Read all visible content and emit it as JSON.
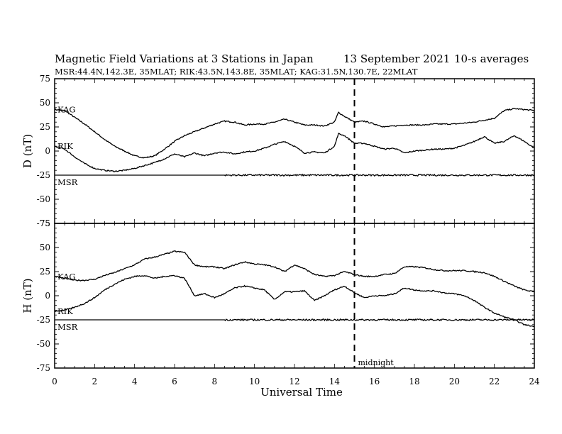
{
  "chart_data": {
    "type": "line",
    "title": "Magnetic Field Variations at 3 Stations in Japan",
    "date": "13 September 2021",
    "averaging": "10-s averages",
    "subtitle": "MSR:44.4N,142.3E, 35MLAT;  RIK:43.5N,143.8E, 35MLAT;  KAG:31.5N,130.7E, 22MLAT",
    "xlabel": "Universal Time",
    "xlim": [
      0,
      24
    ],
    "xticks": [
      "0",
      "2",
      "4",
      "6",
      "8",
      "10",
      "12",
      "14",
      "16",
      "18",
      "20",
      "22",
      "24"
    ],
    "annotation": {
      "x": 15,
      "label": "midnight"
    },
    "panels": [
      {
        "ylabel": "D (nT)",
        "ylim": [
          -75,
          75
        ],
        "yticks": [
          "75",
          "50",
          "25",
          "0",
          "-25",
          "-50",
          "-75"
        ],
        "series": [
          {
            "name": "KAG",
            "x": [
              0,
              0.5,
              1,
              1.5,
              2,
              2.5,
              3,
              3.5,
              4,
              4.5,
              5,
              5.5,
              6,
              6.5,
              7,
              7.5,
              8,
              8.5,
              9,
              9.5,
              10,
              10.5,
              11,
              11.5,
              12,
              12.5,
              13,
              13.5,
              14,
              14.2,
              14.5,
              15,
              15.5,
              16,
              16.5,
              17,
              17.5,
              18,
              18.5,
              19,
              19.5,
              20,
              20.5,
              21,
              21.5,
              22,
              22.5,
              23,
              23.5,
              24
            ],
            "y": [
              43,
              42,
              35,
              28,
              20,
              12,
              5,
              0,
              -5,
              -7,
              -5,
              2,
              10,
              16,
              20,
              24,
              28,
              31,
              30,
              27,
              28,
              28,
              30,
              33,
              30,
              27,
              27,
              26,
              30,
              40,
              36,
              30,
              31,
              28,
              25,
              26,
              27,
              27,
              27,
              28,
              28,
              28,
              29,
              30,
              32,
              34,
              42,
              44,
              43,
              42
            ]
          },
          {
            "name": "RIK",
            "x": [
              0,
              0.5,
              1,
              1.5,
              2,
              2.5,
              3,
              3.5,
              4,
              4.5,
              5,
              5.5,
              6,
              6.5,
              7,
              7.5,
              8,
              8.5,
              9,
              9.5,
              10,
              10.5,
              11,
              11.5,
              12,
              12.5,
              13,
              13.5,
              14,
              14.2,
              14.5,
              15,
              15.5,
              16,
              16.5,
              17,
              17.5,
              18,
              18.5,
              19,
              19.5,
              20,
              20.5,
              21,
              21.5,
              22,
              22.5,
              23,
              23.5,
              24
            ],
            "y": [
              5,
              2,
              -6,
              -13,
              -18,
              -20,
              -21,
              -20,
              -18,
              -15,
              -12,
              -8,
              -3,
              -6,
              -2,
              -5,
              -2,
              -1,
              -3,
              -1,
              0,
              3,
              7,
              10,
              5,
              -2,
              -1,
              -2,
              5,
              18,
              16,
              8,
              8,
              5,
              2,
              3,
              -2,
              0,
              1,
              2,
              2,
              3,
              6,
              10,
              15,
              8,
              10,
              16,
              10,
              3
            ]
          },
          {
            "name": "MSR",
            "x": [
              0,
              2,
              4,
              6,
              8,
              10,
              12,
              14,
              15,
              16,
              18,
              20,
              22,
              24
            ],
            "y": [
              -25,
              -25,
              -25,
              -25,
              -25,
              -25,
              -25,
              -25,
              -25,
              -25,
              -25,
              -25,
              -25,
              -25
            ]
          }
        ]
      },
      {
        "ylabel": "H (nT)",
        "ylim": [
          -75,
          75
        ],
        "yticks": [
          "75",
          "50",
          "25",
          "0",
          "-25",
          "-50",
          "-75"
        ],
        "series": [
          {
            "name": "KAG",
            "x": [
              0,
              0.5,
              1,
              1.5,
              2,
              2.5,
              3,
              3.5,
              4,
              4.5,
              5,
              5.5,
              6,
              6.5,
              7,
              7.5,
              8,
              8.5,
              9,
              9.5,
              10,
              10.5,
              11,
              11.5,
              12,
              12.5,
              13,
              13.5,
              14,
              14.5,
              15,
              15.5,
              16,
              16.5,
              17,
              17.5,
              18,
              18.5,
              19,
              19.5,
              20,
              20.5,
              21,
              21.5,
              22,
              22.5,
              23,
              23.5,
              24
            ],
            "y": [
              20,
              18,
              16,
              16,
              17,
              21,
              24,
              28,
              32,
              38,
              40,
              43,
              46,
              45,
              32,
              30,
              30,
              28,
              32,
              35,
              33,
              32,
              30,
              25,
              32,
              28,
              22,
              20,
              21,
              25,
              22,
              20,
              20,
              22,
              23,
              30,
              30,
              29,
              27,
              26,
              26,
              26,
              25,
              24,
              20,
              15,
              10,
              6,
              4
            ]
          },
          {
            "name": "RIK",
            "x": [
              0,
              0.5,
              1,
              1.5,
              2,
              2.5,
              3,
              3.5,
              4,
              4.5,
              5,
              5.5,
              6,
              6.5,
              7,
              7.5,
              8,
              8.5,
              9,
              9.5,
              10,
              10.5,
              11,
              11.5,
              12,
              12.5,
              13,
              13.5,
              14,
              14.5,
              15,
              15.5,
              16,
              16.5,
              17,
              17.5,
              18,
              18.5,
              19,
              19.5,
              20,
              20.5,
              21,
              21.5,
              22,
              22.5,
              23,
              23.5,
              24
            ],
            "y": [
              -16,
              -15,
              -12,
              -8,
              -2,
              6,
              12,
              17,
              20,
              21,
              18,
              20,
              21,
              18,
              0,
              2,
              -2,
              2,
              8,
              10,
              8,
              6,
              -4,
              4,
              4,
              5,
              -5,
              0,
              6,
              10,
              3,
              -2,
              0,
              0,
              2,
              8,
              6,
              5,
              5,
              3,
              2,
              0,
              -5,
              -12,
              -18,
              -22,
              -25,
              -30,
              -32
            ]
          },
          {
            "name": "MSR",
            "x": [
              0,
              2,
              4,
              6,
              8,
              10,
              12,
              14,
              15,
              16,
              18,
              20,
              22,
              24
            ],
            "y": [
              -25,
              -25,
              -25,
              -25,
              -25,
              -25,
              -25,
              -25,
              -25,
              -25,
              -25,
              -25,
              -25,
              -25
            ]
          }
        ]
      }
    ]
  }
}
